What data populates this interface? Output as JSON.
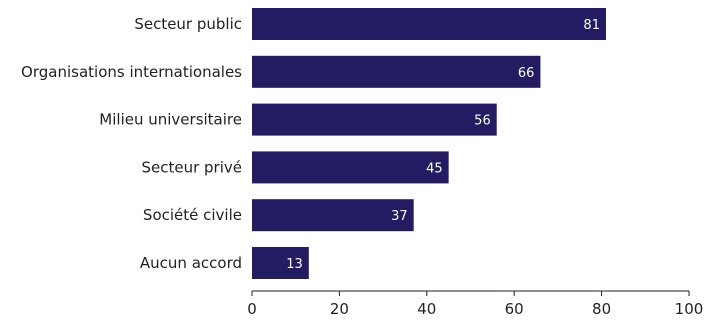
{
  "chart_data": {
    "type": "bar",
    "orientation": "horizontal",
    "categories": [
      "Secteur public",
      "Organisations internationales",
      "Milieu universitaire",
      "Secteur privé",
      "Société civile",
      "Aucun accord"
    ],
    "values": [
      81,
      66,
      56,
      45,
      37,
      13
    ],
    "xlim": [
      0,
      100
    ],
    "xticks": [
      0,
      20,
      40,
      60,
      80,
      100
    ],
    "grid": false,
    "legend": "none",
    "bar_color": "#231c62",
    "label_color": "#ffffff",
    "axis_color": "#231f20"
  }
}
